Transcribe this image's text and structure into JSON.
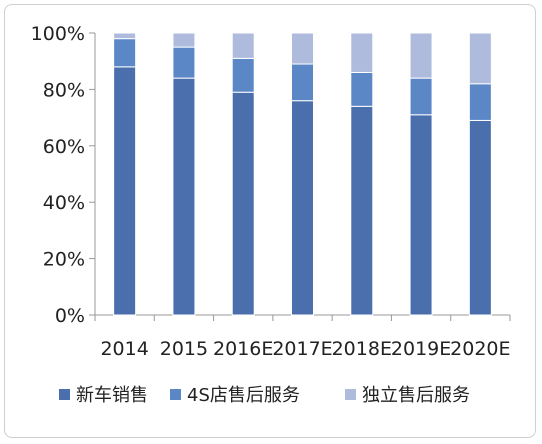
{
  "chart_data": {
    "type": "bar",
    "stacked": true,
    "categories": [
      "2014",
      "2015",
      "2016E",
      "2017E",
      "2018E",
      "2019E",
      "2020E"
    ],
    "series": [
      {
        "name": "新车销售",
        "color": "#4a6fac",
        "values": [
          88,
          84,
          79,
          76,
          74,
          71,
          69
        ]
      },
      {
        "name": "4S店售后服务",
        "color": "#5b87c6",
        "values": [
          10,
          11,
          12,
          13,
          12,
          13,
          13
        ]
      },
      {
        "name": "独立售后服务",
        "color": "#aebbdc",
        "values": [
          2,
          5,
          9,
          11,
          14,
          16,
          18
        ]
      }
    ],
    "y_ticks": [
      "0%",
      "20%",
      "40%",
      "60%",
      "80%",
      "100%"
    ],
    "ylim": [
      0,
      100
    ],
    "grid": false,
    "legend_position": "bottom"
  }
}
